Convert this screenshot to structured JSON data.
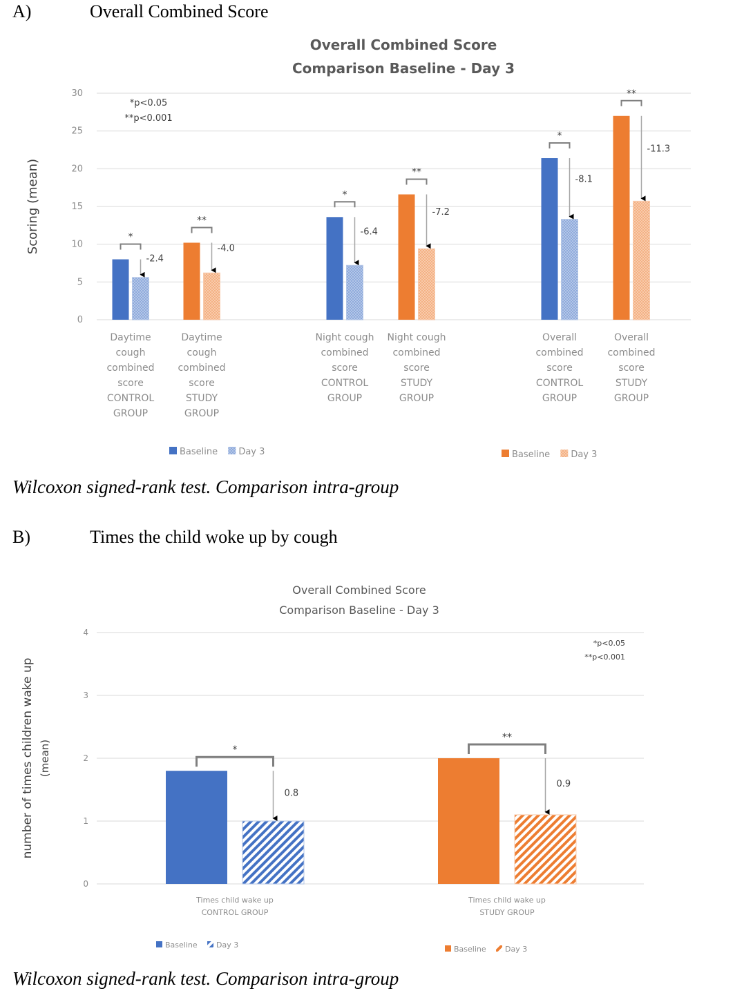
{
  "panels": {
    "a": {
      "letter": "A)",
      "heading": "Overall Combined Score",
      "caption": "Wilcoxon signed-rank test. Comparison intra-group"
    },
    "b": {
      "letter": "B)",
      "heading": "Times the child woke up by cough",
      "caption": "Wilcoxon signed-rank test. Comparison intra-group"
    }
  },
  "colors": {
    "control_baseline": "#4472C4",
    "control_day3": "#8FAADC",
    "study_baseline": "#ED7D31",
    "study_day3": "#F4B183",
    "grid": "#e6e6e6",
    "bracket": "#7f7f7f"
  },
  "chart_data": [
    {
      "type": "bar",
      "title": [
        "Overall Combined Score",
        "Comparison Baseline - Day 3"
      ],
      "xlabel": "",
      "ylabel": "Scoring (mean)",
      "ylim": [
        0,
        30
      ],
      "yticks": [
        0,
        5,
        10,
        15,
        20,
        25,
        30
      ],
      "grid": true,
      "significance_note": [
        "*p<0.05",
        "**p<0.001"
      ],
      "significance_note_position": "top-left",
      "categories": [
        [
          "Daytime",
          "cough",
          "combined",
          "score",
          "CONTROL",
          "GROUP"
        ],
        [
          "Daytime",
          "cough",
          "combined",
          "score",
          "STUDY",
          "GROUP"
        ],
        [
          "Night cough",
          "combined",
          "score",
          "CONTROL",
          "GROUP"
        ],
        [
          "Night cough",
          "combined",
          "score",
          "STUDY",
          "GROUP"
        ],
        [
          "Overall",
          "combined",
          "score",
          "CONTROL",
          "GROUP"
        ],
        [
          "Overall",
          "combined",
          "score",
          "STUDY",
          "GROUP"
        ]
      ],
      "groups": [
        "control",
        "study",
        "control",
        "study",
        "control",
        "study"
      ],
      "series": [
        {
          "name": "Baseline",
          "values": [
            8.0,
            10.2,
            13.6,
            16.6,
            21.4,
            27.0
          ]
        },
        {
          "name": "Day 3",
          "values": [
            5.6,
            6.2,
            7.2,
            9.4,
            13.3,
            15.7
          ]
        }
      ],
      "differences": [
        "-2.4",
        "-4.0",
        "-6.4",
        "-7.2",
        "-8.1",
        "-11.3"
      ],
      "significance": [
        "*",
        "**",
        "*",
        "**",
        "*",
        "**"
      ],
      "legends": [
        {
          "group": "control",
          "position": "bottom-left",
          "entries": [
            "Baseline",
            "Day 3"
          ]
        },
        {
          "group": "study",
          "position": "bottom-right",
          "entries": [
            "Baseline",
            "Day 3"
          ]
        }
      ]
    },
    {
      "type": "bar",
      "title": [
        "Overall Combined Score",
        "Comparison Baseline - Day 3"
      ],
      "xlabel": "",
      "ylabel": [
        "number of times children wake up",
        "(mean)"
      ],
      "ylim": [
        0,
        4
      ],
      "yticks": [
        0,
        1,
        2,
        3,
        4
      ],
      "grid": true,
      "significance_note": [
        "*p<0.05",
        "**p<0.001"
      ],
      "significance_note_position": "top-right",
      "categories": [
        [
          "Times child wake up",
          "CONTROL GROUP"
        ],
        [
          "Times child wake up",
          "STUDY GROUP"
        ]
      ],
      "groups": [
        "control",
        "study"
      ],
      "series": [
        {
          "name": "Baseline",
          "values": [
            1.8,
            2.0
          ]
        },
        {
          "name": "Day 3",
          "values": [
            1.0,
            1.1
          ]
        }
      ],
      "differences": [
        "0.8",
        "0.9"
      ],
      "significance": [
        "*",
        "**"
      ],
      "legends": [
        {
          "group": "control",
          "position": "bottom-left",
          "entries": [
            "Baseline",
            "Day 3"
          ]
        },
        {
          "group": "study",
          "position": "bottom-right",
          "entries": [
            "Baseline",
            "Day 3"
          ]
        }
      ]
    }
  ]
}
